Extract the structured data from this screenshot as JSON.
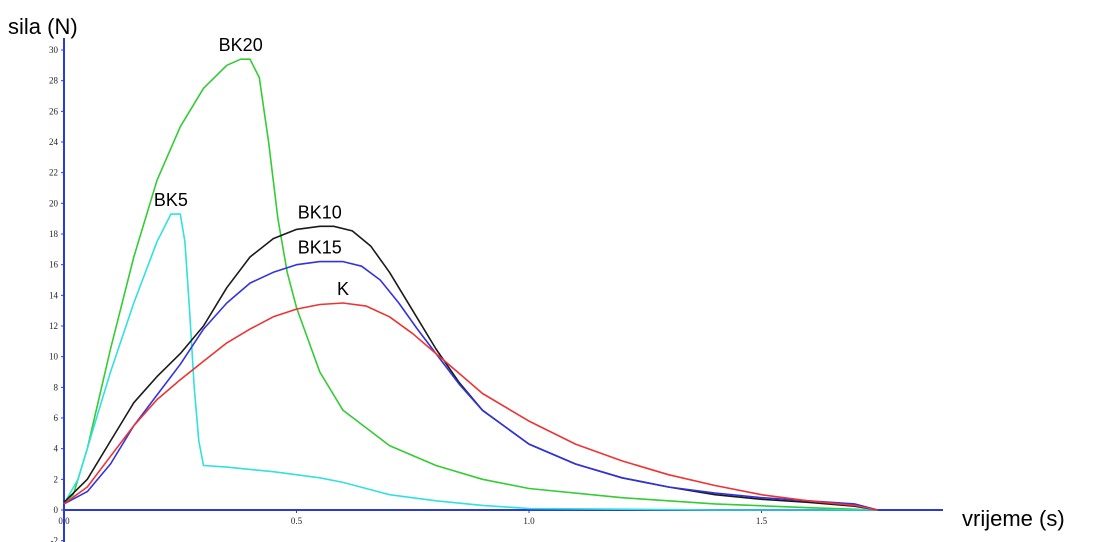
{
  "chart_data": {
    "type": "line",
    "title": "",
    "xlabel": "vrijeme (s)",
    "ylabel": "sila (N)",
    "xlim": [
      0,
      1.9
    ],
    "ylim": [
      -2,
      30
    ],
    "x_ticks": [
      0,
      0.5,
      1.0,
      1.5
    ],
    "x_tick_labels": [
      "0.0",
      "0.5",
      "1.0",
      "1.5"
    ],
    "y_ticks": [
      -2,
      0,
      2,
      4,
      6,
      8,
      10,
      12,
      14,
      16,
      18,
      20,
      22,
      24,
      26,
      28,
      30
    ],
    "y_tick_labels": [
      "-2",
      "0",
      "2",
      "4",
      "6",
      "8",
      "10",
      "12",
      "14",
      "16",
      "18",
      "20",
      "22",
      "24",
      "26",
      "28",
      "30"
    ],
    "grid": false,
    "legend": "none",
    "series": [
      {
        "name": "BK20",
        "color": "#33cc33",
        "x": [
          0.0,
          0.02,
          0.05,
          0.1,
          0.15,
          0.2,
          0.25,
          0.3,
          0.35,
          0.38,
          0.4,
          0.42,
          0.44,
          0.46,
          0.48,
          0.5,
          0.55,
          0.6,
          0.7,
          0.8,
          0.9,
          1.0,
          1.2,
          1.4,
          1.6,
          1.75
        ],
        "y": [
          0.5,
          1.0,
          4.0,
          10.5,
          16.5,
          21.5,
          25.0,
          27.5,
          29.0,
          29.4,
          29.4,
          28.2,
          24.0,
          19.0,
          15.5,
          13.2,
          9.0,
          6.5,
          4.2,
          2.9,
          2.0,
          1.4,
          0.8,
          0.4,
          0.15,
          0.0
        ]
      },
      {
        "name": "BK5",
        "color": "#33e0e0",
        "x": [
          0.0,
          0.03,
          0.06,
          0.1,
          0.15,
          0.2,
          0.23,
          0.25,
          0.26,
          0.27,
          0.28,
          0.29,
          0.3,
          0.35,
          0.45,
          0.55,
          0.6,
          0.7,
          0.8,
          0.9,
          1.0,
          1.2,
          1.4,
          1.75
        ],
        "y": [
          0.4,
          2.0,
          5.0,
          9.0,
          13.5,
          17.5,
          19.3,
          19.3,
          17.5,
          13.0,
          8.0,
          4.5,
          2.9,
          2.8,
          2.5,
          2.1,
          1.8,
          1.0,
          0.6,
          0.3,
          0.1,
          0.05,
          0.0,
          0.0
        ]
      },
      {
        "name": "BK10",
        "color": "#1a1a1a",
        "x": [
          0.0,
          0.05,
          0.1,
          0.15,
          0.2,
          0.25,
          0.3,
          0.35,
          0.4,
          0.45,
          0.5,
          0.55,
          0.58,
          0.62,
          0.66,
          0.7,
          0.75,
          0.8,
          0.85,
          0.9,
          1.0,
          1.1,
          1.2,
          1.3,
          1.4,
          1.5,
          1.6,
          1.7,
          1.75
        ],
        "y": [
          0.5,
          2.0,
          4.5,
          7.0,
          8.7,
          10.2,
          12.0,
          14.5,
          16.5,
          17.7,
          18.3,
          18.5,
          18.5,
          18.2,
          17.2,
          15.5,
          13.0,
          10.5,
          8.3,
          6.5,
          4.3,
          3.0,
          2.1,
          1.5,
          1.0,
          0.7,
          0.5,
          0.25,
          0.0
        ]
      },
      {
        "name": "BK15",
        "color": "#3333dd",
        "x": [
          0.0,
          0.05,
          0.1,
          0.15,
          0.2,
          0.25,
          0.3,
          0.35,
          0.4,
          0.45,
          0.5,
          0.55,
          0.6,
          0.64,
          0.68,
          0.72,
          0.76,
          0.8,
          0.85,
          0.9,
          1.0,
          1.1,
          1.2,
          1.3,
          1.4,
          1.5,
          1.6,
          1.7,
          1.75
        ],
        "y": [
          0.4,
          1.2,
          3.0,
          5.5,
          7.5,
          9.5,
          11.8,
          13.5,
          14.8,
          15.5,
          16.0,
          16.2,
          16.2,
          15.9,
          15.0,
          13.5,
          11.8,
          10.2,
          8.2,
          6.5,
          4.3,
          3.0,
          2.1,
          1.5,
          1.1,
          0.8,
          0.6,
          0.4,
          0.0
        ]
      },
      {
        "name": "K",
        "color": "#ee3333",
        "x": [
          0.0,
          0.05,
          0.1,
          0.15,
          0.2,
          0.25,
          0.3,
          0.35,
          0.4,
          0.45,
          0.5,
          0.55,
          0.6,
          0.65,
          0.7,
          0.75,
          0.8,
          0.85,
          0.9,
          1.0,
          1.1,
          1.2,
          1.3,
          1.4,
          1.5,
          1.6,
          1.7,
          1.75
        ],
        "y": [
          0.4,
          1.5,
          3.5,
          5.5,
          7.2,
          8.5,
          9.7,
          10.9,
          11.8,
          12.6,
          13.1,
          13.4,
          13.5,
          13.3,
          12.6,
          11.5,
          10.2,
          8.9,
          7.6,
          5.8,
          4.3,
          3.2,
          2.3,
          1.6,
          1.0,
          0.6,
          0.3,
          0.0
        ]
      }
    ]
  }
}
